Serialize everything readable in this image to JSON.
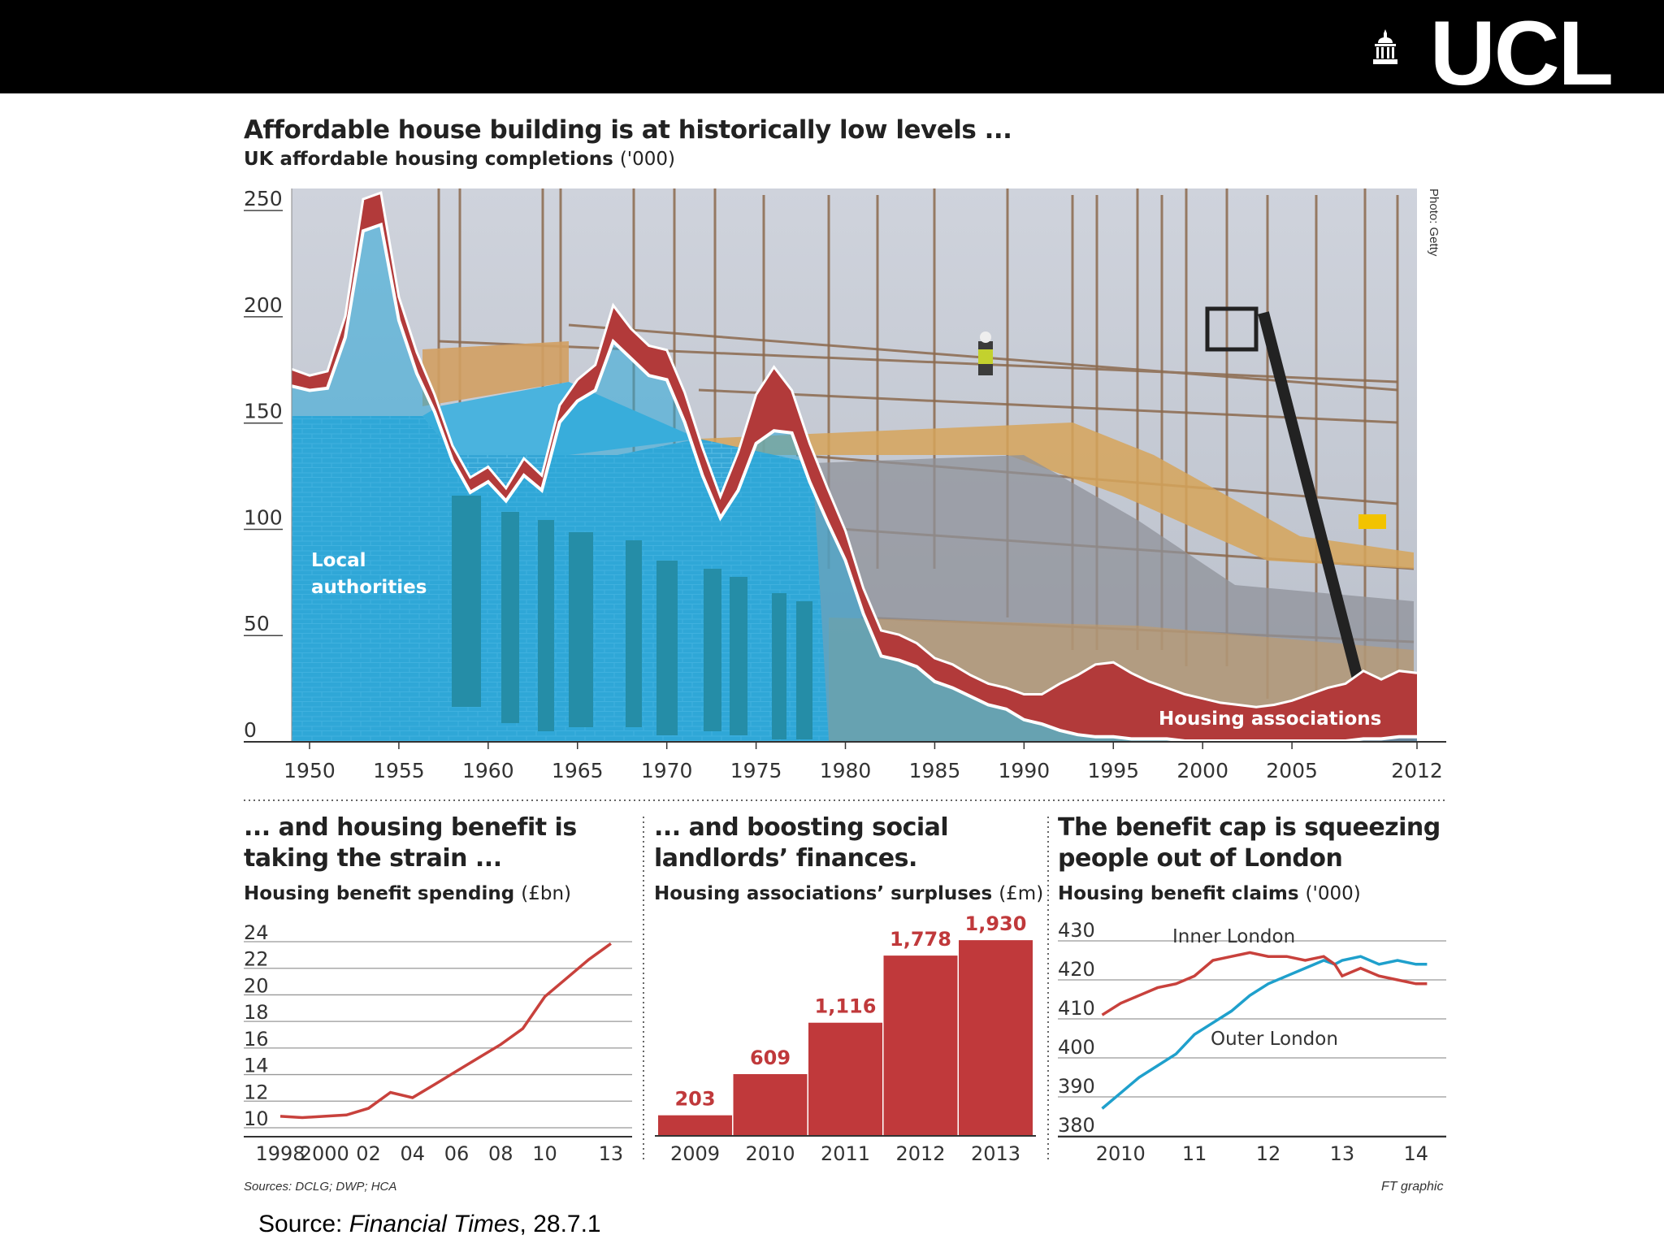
{
  "header": {
    "logo_text": "UCL"
  },
  "main_chart": {
    "title": "Affordable house building is at historically low levels ...",
    "subtitle_bold": "UK affordable housing completions",
    "subtitle_unit": "('000)",
    "photo_credit": "Photo: Getty",
    "label_local": [
      "Local",
      "authorities"
    ],
    "label_ha": "Housing associations"
  },
  "panel1": {
    "title_lines": [
      "... and housing benefit is",
      "taking the strain ..."
    ],
    "subtitle_bold": "Housing benefit spending",
    "subtitle_unit": "(£bn)"
  },
  "panel2": {
    "title_lines": [
      "... and boosting social",
      "landlords’ finances."
    ],
    "subtitle_bold": "Housing associations’ surpluses",
    "subtitle_unit": "(£m)"
  },
  "panel3": {
    "title_lines": [
      "The benefit cap is squeezing",
      "people out of London"
    ],
    "subtitle_bold": "Housing benefit claims",
    "subtitle_unit": "('000)"
  },
  "footer": {
    "sources": "Sources: DCLG; DWP; HCA",
    "ft_graphic": "FT graphic",
    "source_prefix": "Source: ",
    "source_pub": "Financial Times",
    "source_date": ", 28.7.1"
  },
  "colors": {
    "local_authorities": "#29a8d8",
    "housing_associations": "#b23a3a",
    "outer_london": "#1fa0cc",
    "inner_london": "#c8413c",
    "bar": "#c0393b"
  },
  "chart_data": [
    {
      "type": "area",
      "title": "Affordable house building is at historically low levels ...",
      "subtitle": "UK affordable housing completions ('000)",
      "ylim": [
        0,
        260
      ],
      "yticks": [
        0,
        50,
        100,
        150,
        200,
        250
      ],
      "xlim": [
        1949,
        2012
      ],
      "xticks": [
        1950,
        1955,
        1960,
        1965,
        1970,
        1975,
        1980,
        1985,
        1990,
        1995,
        2000,
        2005,
        2012
      ],
      "series": [
        {
          "name": "Local authorities",
          "x": [
            1949,
            1950,
            1951,
            1952,
            1953,
            1954,
            1955,
            1956,
            1957,
            1958,
            1959,
            1960,
            1961,
            1962,
            1963,
            1964,
            1965,
            1966,
            1967,
            1968,
            1969,
            1970,
            1971,
            1972,
            1973,
            1974,
            1975,
            1976,
            1977,
            1978,
            1979,
            1980,
            1981,
            1982,
            1983,
            1984,
            1985,
            1986,
            1987,
            1988,
            1989,
            1990,
            1991,
            1992,
            1993,
            1994,
            1995,
            1996,
            1997,
            1998,
            1999,
            2000,
            2001,
            2002,
            2003,
            2004,
            2005,
            2006,
            2007,
            2008,
            2009,
            2010,
            2011,
            2012
          ],
          "values": [
            167,
            165,
            166,
            190,
            240,
            243,
            198,
            173,
            155,
            132,
            117,
            122,
            113,
            125,
            118,
            150,
            160,
            165,
            188,
            180,
            172,
            170,
            150,
            125,
            105,
            118,
            140,
            146,
            145,
            122,
            103,
            85,
            60,
            40,
            38,
            35,
            28,
            25,
            21,
            17,
            15,
            10,
            8,
            5,
            3,
            2,
            2,
            1,
            1,
            1,
            0,
            0,
            0,
            0,
            0,
            0,
            0,
            0,
            0,
            0,
            1,
            1,
            2,
            2
          ]
        },
        {
          "name": "Housing associations",
          "x": [
            1949,
            1950,
            1951,
            1952,
            1953,
            1954,
            1955,
            1956,
            1957,
            1958,
            1959,
            1960,
            1961,
            1962,
            1963,
            1964,
            1965,
            1966,
            1967,
            1968,
            1969,
            1970,
            1971,
            1972,
            1973,
            1974,
            1975,
            1976,
            1977,
            1978,
            1979,
            1980,
            1981,
            1982,
            1983,
            1984,
            1985,
            1986,
            1987,
            1988,
            1989,
            1990,
            1991,
            1992,
            1993,
            1994,
            1995,
            1996,
            1997,
            1998,
            1999,
            2000,
            2001,
            2002,
            2003,
            2004,
            2005,
            2006,
            2007,
            2008,
            2009,
            2010,
            2011,
            2012
          ],
          "values": [
            8,
            7,
            8,
            10,
            15,
            15,
            11,
            10,
            8,
            7,
            7,
            7,
            6,
            8,
            7,
            8,
            10,
            12,
            17,
            14,
            14,
            14,
            14,
            13,
            10,
            18,
            23,
            30,
            20,
            18,
            16,
            14,
            12,
            12,
            12,
            11,
            11,
            11,
            10,
            10,
            10,
            12,
            14,
            22,
            28,
            34,
            35,
            31,
            27,
            24,
            22,
            20,
            18,
            17,
            16,
            17,
            19,
            22,
            25,
            27,
            32,
            28,
            31,
            30
          ]
        }
      ]
    },
    {
      "type": "line",
      "title": "... and housing benefit is taking the strain ...",
      "subtitle": "Housing benefit spending (£bn)",
      "ylim": [
        10,
        24
      ],
      "yticks": [
        10,
        12,
        14,
        16,
        18,
        20,
        22,
        24
      ],
      "xtick_labels": [
        "1998",
        "2000",
        "02",
        "04",
        "06",
        "08",
        "10",
        "13"
      ],
      "xtick_years": [
        1998,
        2000,
        2002,
        2004,
        2006,
        2008,
        2010,
        2013
      ],
      "series": [
        {
          "x": [
            1998,
            1999,
            2000,
            2001,
            2002,
            2003,
            2004,
            2005,
            2006,
            2007,
            2008,
            2009,
            2010,
            2011,
            2012,
            2013
          ],
          "values": [
            10.8,
            10.7,
            10.8,
            10.9,
            11.4,
            12.6,
            12.2,
            13.2,
            14.2,
            15.2,
            16.2,
            17.4,
            19.8,
            21.2,
            22.6,
            23.8
          ]
        }
      ]
    },
    {
      "type": "bar",
      "title": "... and boosting social landlords’ finances.",
      "subtitle": "Housing associations’ surpluses (£m)",
      "categories": [
        "2009",
        "2010",
        "2011",
        "2012",
        "2013"
      ],
      "values": [
        203,
        609,
        1116,
        1778,
        1930
      ],
      "data_labels": [
        "203",
        "609",
        "1,116",
        "1,778",
        "1,930"
      ],
      "ylim": [
        0,
        2000
      ]
    },
    {
      "type": "line",
      "title": "The benefit cap is squeezing people out of London",
      "subtitle": "Housing benefit claims ('000)",
      "ylim": [
        380,
        430
      ],
      "yticks": [
        380,
        390,
        400,
        410,
        420,
        430
      ],
      "xtick_labels": [
        "2010",
        "11",
        "12",
        "13",
        "14"
      ],
      "xtick_values": [
        2010,
        2011,
        2012,
        2013,
        2014
      ],
      "xlim": [
        2009.7,
        2014.3
      ],
      "series": [
        {
          "name": "Inner London",
          "x": [
            2009.75,
            2010.0,
            2010.25,
            2010.5,
            2010.75,
            2011.0,
            2011.25,
            2011.5,
            2011.75,
            2012.0,
            2012.25,
            2012.5,
            2012.75,
            2012.9,
            2013.0,
            2013.25,
            2013.5,
            2013.75,
            2014.0,
            2014.15
          ],
          "values": [
            411,
            414,
            416,
            418,
            419,
            421,
            425,
            426,
            427,
            426,
            426,
            425,
            426,
            424,
            421,
            423,
            421,
            420,
            419,
            419
          ]
        },
        {
          "name": "Outer London",
          "x": [
            2009.75,
            2010.0,
            2010.25,
            2010.5,
            2010.75,
            2011.0,
            2011.25,
            2011.5,
            2011.75,
            2012.0,
            2012.25,
            2012.5,
            2012.75,
            2012.9,
            2013.0,
            2013.25,
            2013.5,
            2013.75,
            2014.0,
            2014.15
          ],
          "values": [
            387,
            391,
            395,
            398,
            401,
            406,
            409,
            412,
            416,
            419,
            421,
            423,
            425,
            424,
            425,
            426,
            424,
            425,
            424,
            424
          ]
        }
      ]
    }
  ]
}
